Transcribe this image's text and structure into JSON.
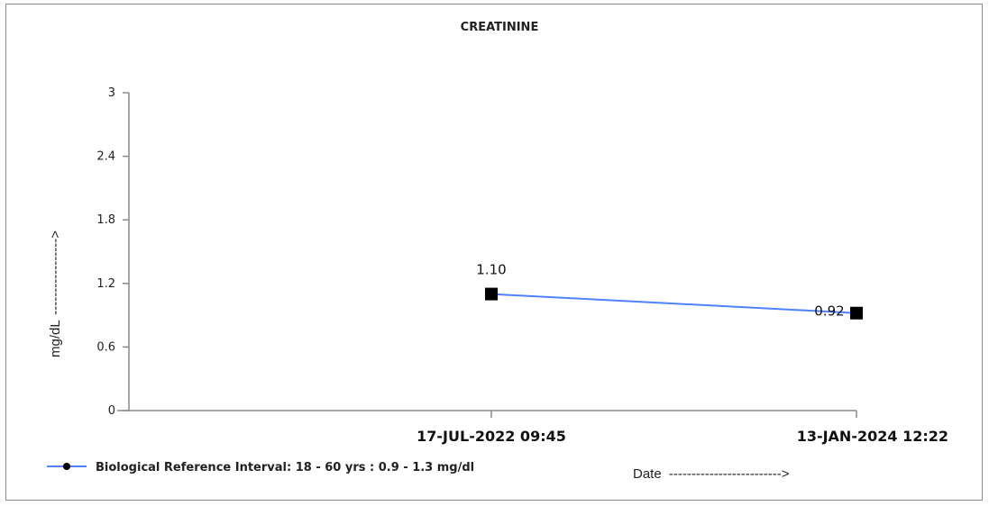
{
  "chart_data": {
    "type": "line",
    "title": "CREATININE",
    "ylabel": "mg/dL",
    "ylabel_arrow": "----------------->",
    "xlabel": "Date",
    "xlabel_arrow": "------------------------->",
    "ylim": [
      0,
      3
    ],
    "yticks": [
      0,
      0.6,
      1.2,
      1.8,
      2.4,
      3
    ],
    "ytick_labels": [
      "0",
      "0.6",
      "1.2",
      "1.8",
      "2.4",
      "3"
    ],
    "categories": [
      "17-JUL-2022 09:45",
      "13-JAN-2024 12:22"
    ],
    "series": [
      {
        "name": "Biological Reference Interval: 18 - 60 yrs : 0.9 - 1.3 mg/dl",
        "values": [
          1.1,
          0.92
        ],
        "value_labels": [
          "1.10",
          "0.92"
        ],
        "color": "#4f81ff",
        "marker_color": "#000000"
      }
    ],
    "legend_position": "bottom-left",
    "grid": false
  }
}
